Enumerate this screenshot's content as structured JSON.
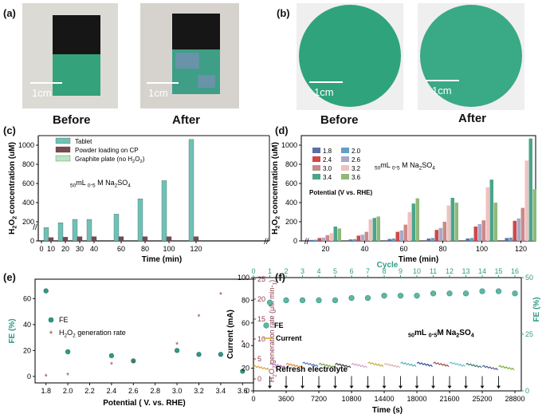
{
  "panels": {
    "a": "(a)",
    "b": "(b)",
    "c": "(c)",
    "d": "(d)",
    "e": "(e)",
    "f": "(f)"
  },
  "photos": {
    "scale_label": "1cm",
    "before": "Before",
    "after": "After",
    "colors": {
      "catalyst": "#2fa37a",
      "carbon_paper": "#1a1a1a",
      "background": "#d9d6d2"
    }
  },
  "chart_data": [
    {
      "id": "c",
      "type": "bar",
      "title": "",
      "annotation": "50mL 0.5 M Na2SO4",
      "xlabel": "Time (min)",
      "ylabel": "H2O2 concentration (uM)",
      "ylim": [
        0,
        1100
      ],
      "y_ticks": [
        "0",
        "200",
        "400",
        "600",
        "800",
        "1000"
      ],
      "categories": [
        10,
        20,
        30,
        40,
        60,
        80,
        100,
        120
      ],
      "x_tick_labels": [
        "0",
        "10",
        "20",
        "30",
        "40",
        "60",
        "80",
        "100",
        "120"
      ],
      "legend": [
        "Tablet",
        "Powder loading on CP",
        "Graphite plate (no H2O2)"
      ],
      "series": [
        {
          "name": "Tablet",
          "color": "#6ec1b6",
          "values": [
            140,
            190,
            225,
            0,
            280,
            440,
            630,
            1060
          ]
        },
        {
          "name": "Powder loading on CP",
          "color": "#7a4a50",
          "values": [
            35,
            40,
            45,
            45,
            45,
            45,
            45,
            45
          ]
        },
        {
          "name": "Graphite plate (no H2O2)",
          "color": "#b9e6c2",
          "values": [
            0,
            0,
            0,
            0,
            0,
            0,
            0,
            0
          ]
        }
      ],
      "extra_points": [
        {
          "x": 40,
          "series": "Tablet",
          "value": 225
        }
      ],
      "legend_position": "top-left"
    },
    {
      "id": "d",
      "type": "bar",
      "annotation": "50mL 0.5 M Na2SO4",
      "legend_title": "Potential (V vs. RHE)",
      "xlabel": "Time (min)",
      "ylabel": "H2O2 concentration (uM)",
      "ylim": [
        0,
        1100
      ],
      "y_ticks": [
        "0",
        "200",
        "400",
        "600",
        "800",
        "1000"
      ],
      "categories": [
        "20",
        "40",
        "60",
        "80",
        "100",
        "120"
      ],
      "legend_position": "top-left",
      "series": [
        {
          "name": "1.8",
          "color": "#5b6fa8",
          "values": [
            10,
            15,
            20,
            25,
            25,
            30
          ]
        },
        {
          "name": "2.0",
          "color": "#5fa0c8",
          "values": [
            12,
            18,
            25,
            30,
            30,
            35
          ]
        },
        {
          "name": "2.4",
          "color": "#d04848",
          "values": [
            30,
            55,
            95,
            115,
            150,
            210
          ]
        },
        {
          "name": "2.6",
          "color": "#a7a9c9",
          "values": [
            35,
            65,
            110,
            135,
            175,
            235
          ]
        },
        {
          "name": "3.0",
          "color": "#c98a8a",
          "values": [
            60,
            95,
            170,
            200,
            215,
            345
          ]
        },
        {
          "name": "3.2",
          "color": "#f0c0c0",
          "values": [
            80,
            225,
            300,
            370,
            560,
            840
          ]
        },
        {
          "name": "3.4",
          "color": "#4aa58a",
          "values": [
            150,
            240,
            390,
            450,
            640,
            1070
          ]
        },
        {
          "name": "3.6",
          "color": "#8fb87a",
          "values": [
            130,
            255,
            445,
            400,
            400,
            540
          ]
        }
      ]
    },
    {
      "id": "e",
      "type": "scatter",
      "xlabel": "Potential ( V. vs. RHE)",
      "ylabel_left": "FE (%)",
      "ylabel_right": "H2O2 generation rate (μM min-1)",
      "x_ticks": [
        "1.8",
        "2.0",
        "2.2",
        "2.4",
        "2.6",
        "2.8",
        "3.0",
        "3.2",
        "3.4",
        "3.6"
      ],
      "xlim": [
        1.7,
        3.7
      ],
      "ylim_left": [
        -5,
        75
      ],
      "y_ticks_left": [
        "0",
        "20",
        "40",
        "60"
      ],
      "ylim_right": [
        -1,
        25
      ],
      "y_ticks_right": [
        "0",
        "5",
        "10",
        "15",
        "20",
        "25"
      ],
      "legend_position": "center-left",
      "series": [
        {
          "name": "FE",
          "axis": "left",
          "color": "#2f9b85",
          "x": [
            1.8,
            2.0,
            2.4,
            2.6,
            3.0,
            3.2,
            3.4,
            3.6
          ],
          "y": [
            66,
            19,
            16,
            12,
            20,
            17,
            17,
            4
          ]
        },
        {
          "name": "H2O2 generation rate",
          "axis": "right",
          "color": "#8a3a4a",
          "x": [
            1.8,
            2.0,
            2.4,
            2.6,
            3.0,
            3.2,
            3.4,
            3.6
          ],
          "y": [
            0.5,
            0.8,
            3.5,
            4.0,
            8.5,
            15.5,
            21.0,
            9.0
          ]
        }
      ]
    },
    {
      "id": "f",
      "type": "line",
      "xlabel": "Time (s)",
      "x_top_label": "Cycle",
      "ylabel_left": "Current (mA)",
      "ylabel_right": "FE (%)",
      "annotation": "50mL 0.5M Na2SO4",
      "refresh_label": "Refresh electrolyte",
      "legend": [
        "FE",
        "Current"
      ],
      "legend_position": "center-left",
      "xlim": [
        0,
        29500
      ],
      "x_ticks": [
        "0",
        "3600",
        "7200",
        "10800",
        "14400",
        "18000",
        "21600",
        "25200",
        "28800"
      ],
      "top_ticks": [
        "0",
        "1",
        "2",
        "3",
        "4",
        "5",
        "6",
        "7",
        "8",
        "9",
        "10",
        "11",
        "12",
        "13",
        "14",
        "15",
        "16"
      ],
      "ylim_left": [
        0,
        100
      ],
      "y_ticks_left": [
        "0",
        "20",
        "40",
        "60",
        "80",
        "100"
      ],
      "ylim_right": [
        0,
        50
      ],
      "y_ticks_right": [
        "0",
        "25",
        "50"
      ],
      "fe_cycles": [
        1,
        2,
        3,
        4,
        5,
        6,
        7,
        8,
        9,
        10,
        11,
        12,
        13,
        14,
        15,
        16
      ],
      "fe_values": [
        39,
        40,
        40,
        40,
        40,
        41,
        41,
        42,
        42,
        42,
        43,
        43,
        43,
        44,
        44,
        43
      ],
      "current_segments": [
        {
          "color": "#e0a33a",
          "start": 22
        },
        {
          "color": "#b36abf",
          "start": 24
        },
        {
          "color": "#e08a3a",
          "start": 24
        },
        {
          "color": "#4a78c8",
          "start": 25
        },
        {
          "color": "#7aa04a",
          "start": 24
        },
        {
          "color": "#3c3c3c",
          "start": 24
        },
        {
          "color": "#d7a0c8",
          "start": 24
        },
        {
          "color": "#c0b040",
          "start": 25
        },
        {
          "color": "#e0b0b0",
          "start": 24
        },
        {
          "color": "#50b0c0",
          "start": 25
        },
        {
          "color": "#2a4a9a",
          "start": 25
        },
        {
          "color": "#a04a4a",
          "start": 25
        },
        {
          "color": "#6ac0d0",
          "start": 25
        },
        {
          "color": "#3a7a6a",
          "start": 24
        },
        {
          "color": "#5a5a9a",
          "start": 22
        },
        {
          "color": "#7ab03a",
          "start": 22
        }
      ]
    }
  ]
}
